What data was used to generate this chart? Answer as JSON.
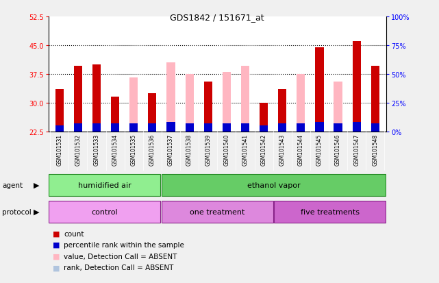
{
  "title": "GDS1842 / 151671_at",
  "samples": [
    "GSM101531",
    "GSM101532",
    "GSM101533",
    "GSM101534",
    "GSM101535",
    "GSM101536",
    "GSM101537",
    "GSM101538",
    "GSM101539",
    "GSM101540",
    "GSM101541",
    "GSM101542",
    "GSM101543",
    "GSM101544",
    "GSM101545",
    "GSM101546",
    "GSM101547",
    "GSM101548"
  ],
  "count_values": [
    33.5,
    39.5,
    40.0,
    31.5,
    0,
    32.5,
    0,
    0,
    35.5,
    0,
    0,
    30.0,
    33.5,
    0,
    44.5,
    0,
    46.0,
    39.5
  ],
  "pink_values": [
    33.5,
    0,
    0,
    31.5,
    36.5,
    32.5,
    40.5,
    37.5,
    35.5,
    38.0,
    39.5,
    30.0,
    0,
    37.5,
    0,
    35.5,
    0,
    0
  ],
  "blue_values": [
    1.5,
    2.0,
    2.0,
    2.0,
    2.0,
    2.0,
    2.5,
    2.0,
    2.0,
    2.0,
    2.0,
    1.5,
    2.0,
    2.0,
    2.5,
    2.0,
    2.5,
    2.0
  ],
  "lightblue_values": [
    1.5,
    0,
    0,
    0,
    2.0,
    0,
    2.5,
    0,
    0,
    0,
    0,
    1.5,
    0,
    0,
    0,
    0,
    0,
    0
  ],
  "ylim_left": [
    22.5,
    52.5
  ],
  "ylim_right": [
    0,
    100
  ],
  "yticks_left": [
    22.5,
    30,
    37.5,
    45,
    52.5
  ],
  "yticks_right": [
    0,
    25,
    50,
    75,
    100
  ],
  "color_count": "#cc0000",
  "color_pink": "#ffb6c1",
  "color_blue": "#0000cc",
  "color_lightblue": "#b0c4de",
  "agent_groups": [
    {
      "label": "humidified air",
      "start": 0,
      "end": 6,
      "color": "#90ee90"
    },
    {
      "label": "ethanol vapor",
      "start": 6,
      "end": 18,
      "color": "#66cc66"
    }
  ],
  "protocol_groups": [
    {
      "label": "control",
      "start": 0,
      "end": 6,
      "color": "#f0a0f0"
    },
    {
      "label": "one treatment",
      "start": 6,
      "end": 12,
      "color": "#dd66dd"
    },
    {
      "label": "five treatments",
      "start": 12,
      "end": 18,
      "color": "#cc44cc"
    }
  ],
  "legend_items": [
    {
      "color": "#cc0000",
      "label": "count"
    },
    {
      "color": "#0000cc",
      "label": "percentile rank within the sample"
    },
    {
      "color": "#ffb6c1",
      "label": "value, Detection Call = ABSENT"
    },
    {
      "color": "#b0c4de",
      "label": "rank, Detection Call = ABSENT"
    }
  ],
  "bar_width": 0.45,
  "baseline": 22.5,
  "grid_yticks": [
    30,
    37.5,
    45
  ],
  "bg_color": "#c8c8c8",
  "plot_bg": "#ffffff",
  "fig_bg": "#f0f0f0"
}
